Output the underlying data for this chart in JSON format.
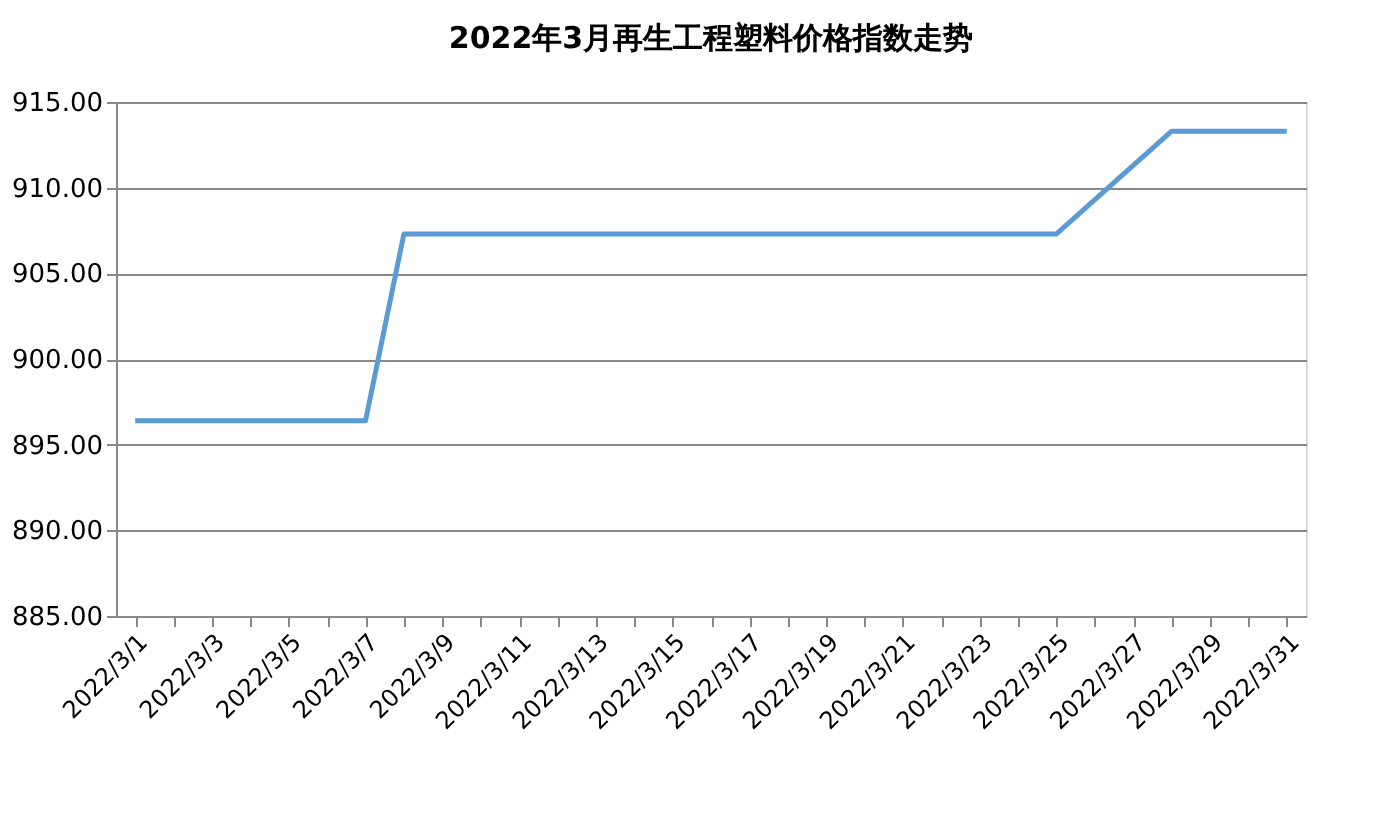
{
  "chart_data": {
    "type": "line",
    "title": "2022年3月再生工程塑料价格指数走势",
    "categories": [
      "2022/3/1",
      null,
      "2022/3/3",
      null,
      "2022/3/5",
      null,
      "2022/3/7",
      null,
      "2022/3/9",
      null,
      "2022/3/11",
      null,
      "2022/3/13",
      null,
      "2022/3/15",
      null,
      "2022/3/17",
      null,
      "2022/3/19",
      null,
      "2022/3/21",
      null,
      "2022/3/23",
      null,
      "2022/3/25",
      null,
      "2022/3/27",
      null,
      "2022/3/29",
      null,
      "2022/3/31"
    ],
    "series": [
      {
        "color": "#5b9bd5",
        "values": [
          896.4,
          896.4,
          896.4,
          896.4,
          896.4,
          896.4,
          896.4,
          907.3,
          907.3,
          907.3,
          907.3,
          907.3,
          907.3,
          907.3,
          907.3,
          907.3,
          907.3,
          907.3,
          907.3,
          907.3,
          907.3,
          907.3,
          907.3,
          907.3,
          907.3,
          909.3,
          911.3,
          913.3,
          913.3,
          913.3,
          913.3
        ]
      }
    ],
    "ylim": [
      885,
      915
    ],
    "yticks": [
      {
        "value": 885,
        "label": "885.00"
      },
      {
        "value": 890,
        "label": "890.00"
      },
      {
        "value": 895,
        "label": "895.00"
      },
      {
        "value": 900,
        "label": "900.00"
      },
      {
        "value": 905,
        "label": "905.00"
      },
      {
        "value": 910,
        "label": "910.00"
      },
      {
        "value": 915,
        "label": "915.00"
      }
    ],
    "grid": "y",
    "legend": false,
    "marker": "none",
    "line_style": "solid"
  }
}
